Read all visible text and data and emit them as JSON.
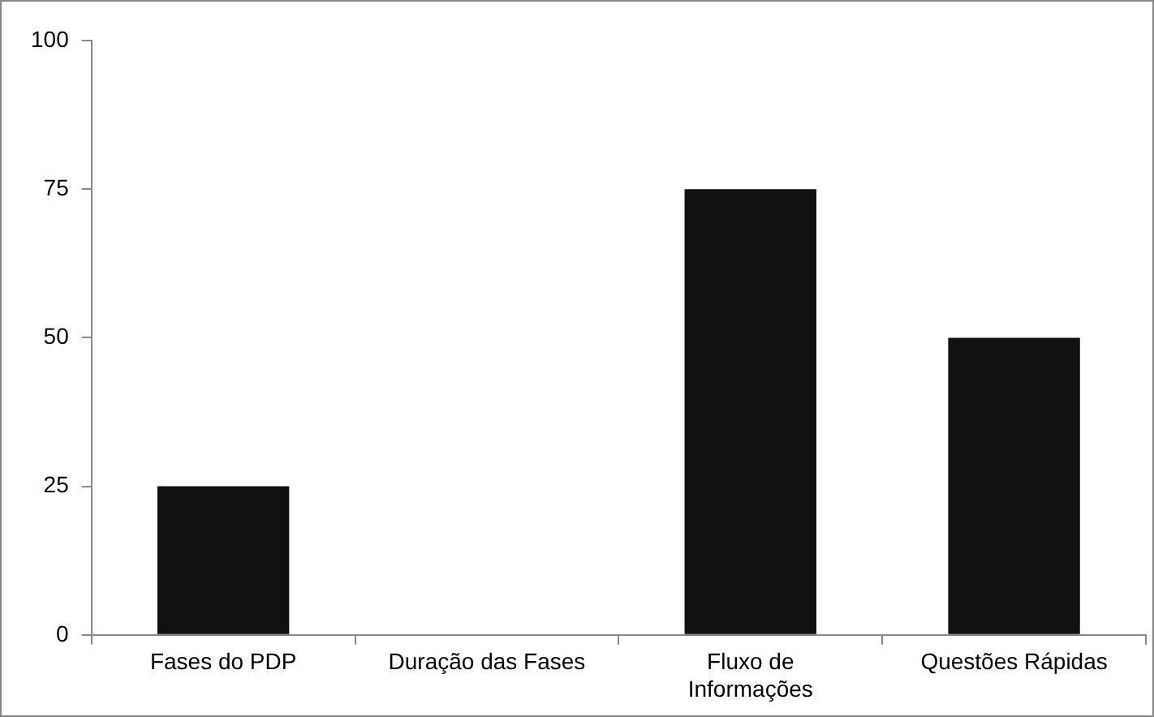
{
  "chart_data": {
    "type": "bar",
    "categories": [
      "Fases do PDP",
      "Duração das Fases",
      "Fluxo de Informações",
      "Questões Rápidas"
    ],
    "values": [
      25,
      0,
      75,
      50
    ],
    "color": "#111111",
    "ylim": [
      0,
      100
    ],
    "yticks": [
      0,
      25,
      50,
      75,
      100
    ],
    "grid": false,
    "legend": false
  }
}
